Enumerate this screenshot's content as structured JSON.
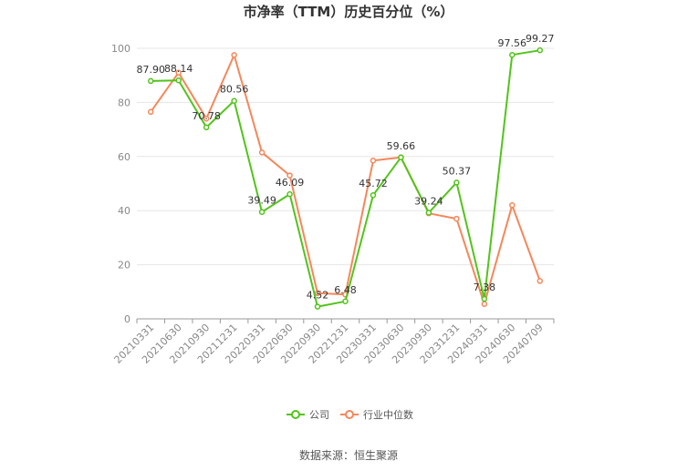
{
  "chart_data": {
    "type": "line",
    "title": "市净率（TTM）历史百分位（%）",
    "categories": [
      "20210331",
      "20210630",
      "20210930",
      "20211231",
      "20220331",
      "20220630",
      "20220930",
      "20221231",
      "20230331",
      "20230630",
      "20230930",
      "20231231",
      "20240331",
      "20240630",
      "20240709"
    ],
    "ylim": [
      0,
      100
    ],
    "yticks": [
      0,
      20,
      40,
      60,
      80,
      100
    ],
    "grid": true,
    "legend_position": "bottom",
    "series": [
      {
        "name": "公司",
        "color": "#52c41a",
        "values": [
          87.9,
          88.14,
          70.78,
          80.56,
          39.49,
          46.09,
          4.52,
          6.48,
          45.72,
          59.66,
          39.24,
          50.37,
          7.38,
          97.56,
          99.27
        ],
        "labels": [
          "87.90",
          "88.14",
          "70.78",
          "80.56",
          "39.49",
          "46.09",
          "4.52",
          "6.48",
          "45.72",
          "59.66",
          "39.24",
          "50.37",
          "7.38",
          "97.56",
          "99.27"
        ]
      },
      {
        "name": "行业中位数",
        "color": "#f5875a",
        "values": [
          76.5,
          91.0,
          74.0,
          97.5,
          61.5,
          53.0,
          9.5,
          9.0,
          58.5,
          59.7,
          39.0,
          37.0,
          5.5,
          42.0,
          14.0
        ]
      }
    ]
  },
  "source": "数据来源：恒生聚源"
}
